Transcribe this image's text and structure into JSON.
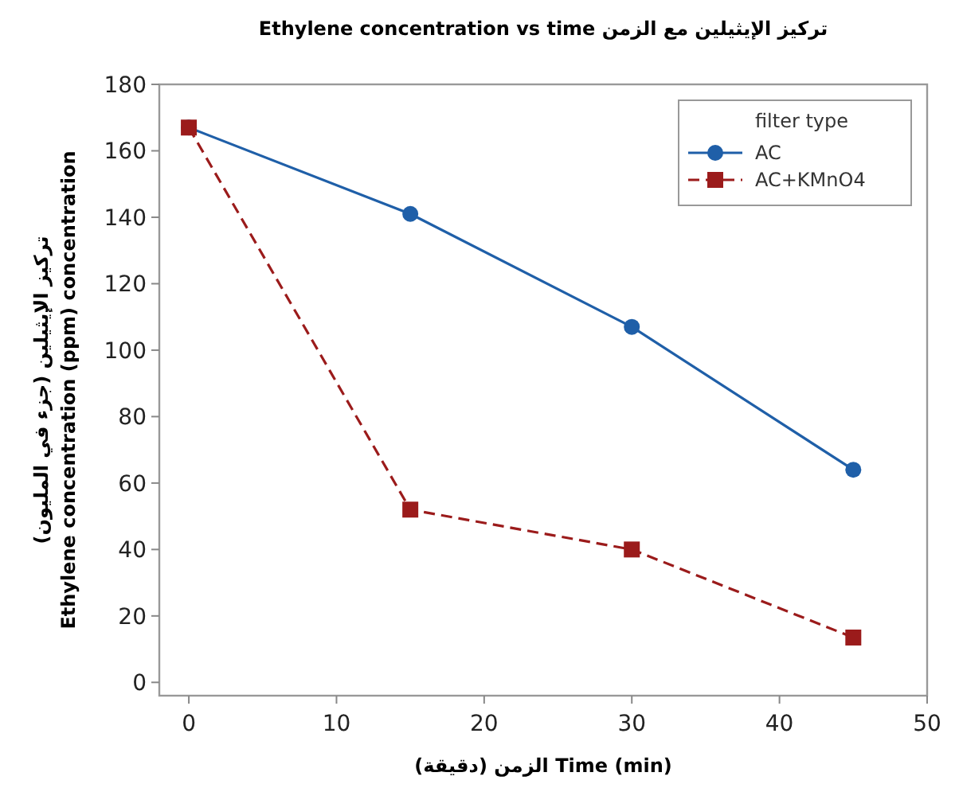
{
  "chart_data": {
    "type": "line",
    "title": "Ethylene concentration vs time تركيز الإيثيلين مع الزمن",
    "xlabel": "الزمن (دقيقة) Time (min)",
    "ylabel": "تركيز الإيثيلين (جزء في المليون)\nEthylene concentration (ppm) concentration",
    "legend_title": "filter type",
    "x": [
      0,
      15,
      30,
      45
    ],
    "series": [
      {
        "name": "AC",
        "color": "#1f5fa8",
        "values": [
          167,
          141,
          107,
          64
        ],
        "marker": "circle",
        "line_style": "solid"
      },
      {
        "name": "AC+KMnO4",
        "color": "#9b1b1b",
        "values": [
          167,
          52,
          40,
          13.5
        ],
        "marker": "square",
        "line_style": "dashed"
      }
    ],
    "xlim": [
      -2,
      50
    ],
    "xticks": [
      0,
      10,
      20,
      30,
      40,
      50
    ],
    "ylim": [
      -4,
      180
    ],
    "yticks": [
      0,
      20,
      40,
      60,
      80,
      100,
      120,
      140,
      160,
      180
    ],
    "grid": false,
    "legend": "top right"
  }
}
